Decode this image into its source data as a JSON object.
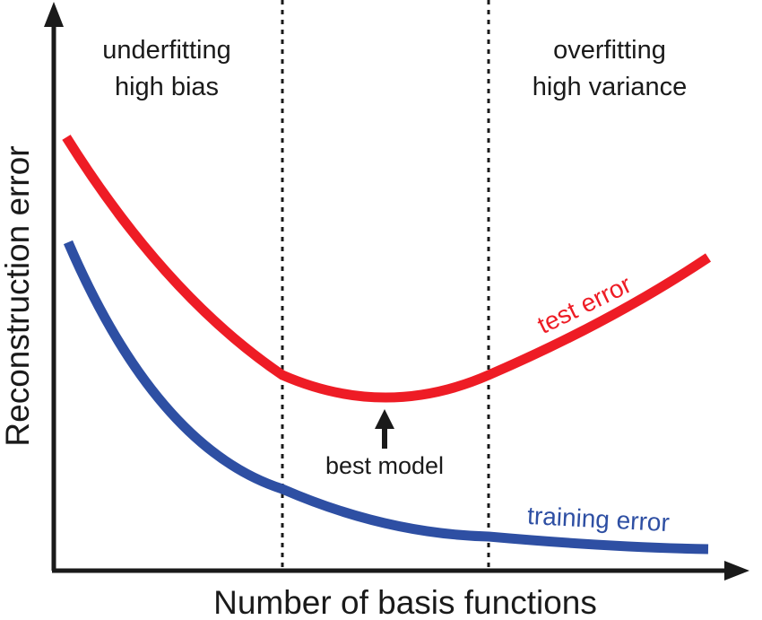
{
  "chart_data": {
    "type": "line",
    "xlabel": "Number of basis functions",
    "ylabel": "Reconstruction error",
    "regions": {
      "left": {
        "line1": "underfitting",
        "line2": "high bias"
      },
      "right": {
        "line1": "overfitting",
        "line2": "high variance"
      }
    },
    "series": [
      {
        "name": "test error",
        "color": "#ee1c25"
      },
      {
        "name": "training error",
        "color": "#2e4fa3"
      }
    ],
    "annotation": {
      "label": "best model"
    },
    "axis_color": "#1a1a1a",
    "divider_style": "dotted"
  }
}
